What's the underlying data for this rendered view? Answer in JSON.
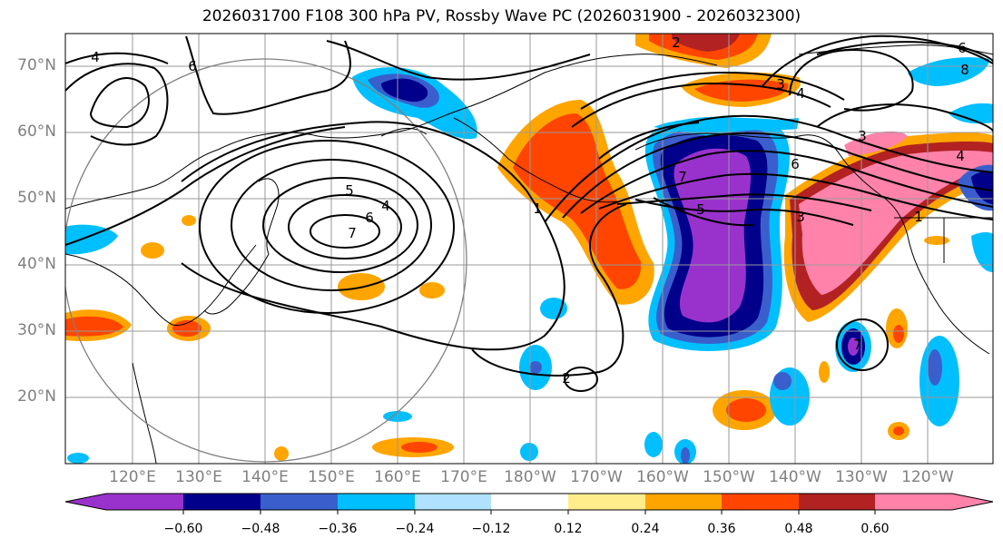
{
  "title": "2026031700 F108 300 hPa PV, Rossby Wave PC (2026031900 - 2026032300)",
  "lat_labels": [
    "70°N",
    "60°N",
    "50°N",
    "40°N",
    "30°N",
    "20°N"
  ],
  "lon_labels": [
    "120°E",
    "130°E",
    "140°E",
    "150°E",
    "160°E",
    "170°E",
    "180°W",
    "170°W",
    "160°W",
    "150°W",
    "140°W",
    "130°W",
    "120°W"
  ],
  "colorbar": {
    "ticks": [
      "−0.60",
      "−0.48",
      "−0.36",
      "−0.24",
      "−0.12",
      "0.12",
      "0.24",
      "0.36",
      "0.48",
      "0.60"
    ],
    "colors": [
      "#9932cc",
      "#00008b",
      "#3a5fcd",
      "#00bfff",
      "#b0e2ff",
      "#ffffff",
      "#ffec8b",
      "#ffa500",
      "#ff4500",
      "#b22222",
      "#ff82ab"
    ]
  },
  "contour_labels": [
    "7",
    "6",
    "5",
    "4",
    "1",
    "2",
    "7",
    "5",
    "3",
    "4",
    "3",
    "4",
    "6",
    "3",
    "1",
    "2",
    "4",
    "6",
    "8",
    "6",
    "7"
  ]
}
